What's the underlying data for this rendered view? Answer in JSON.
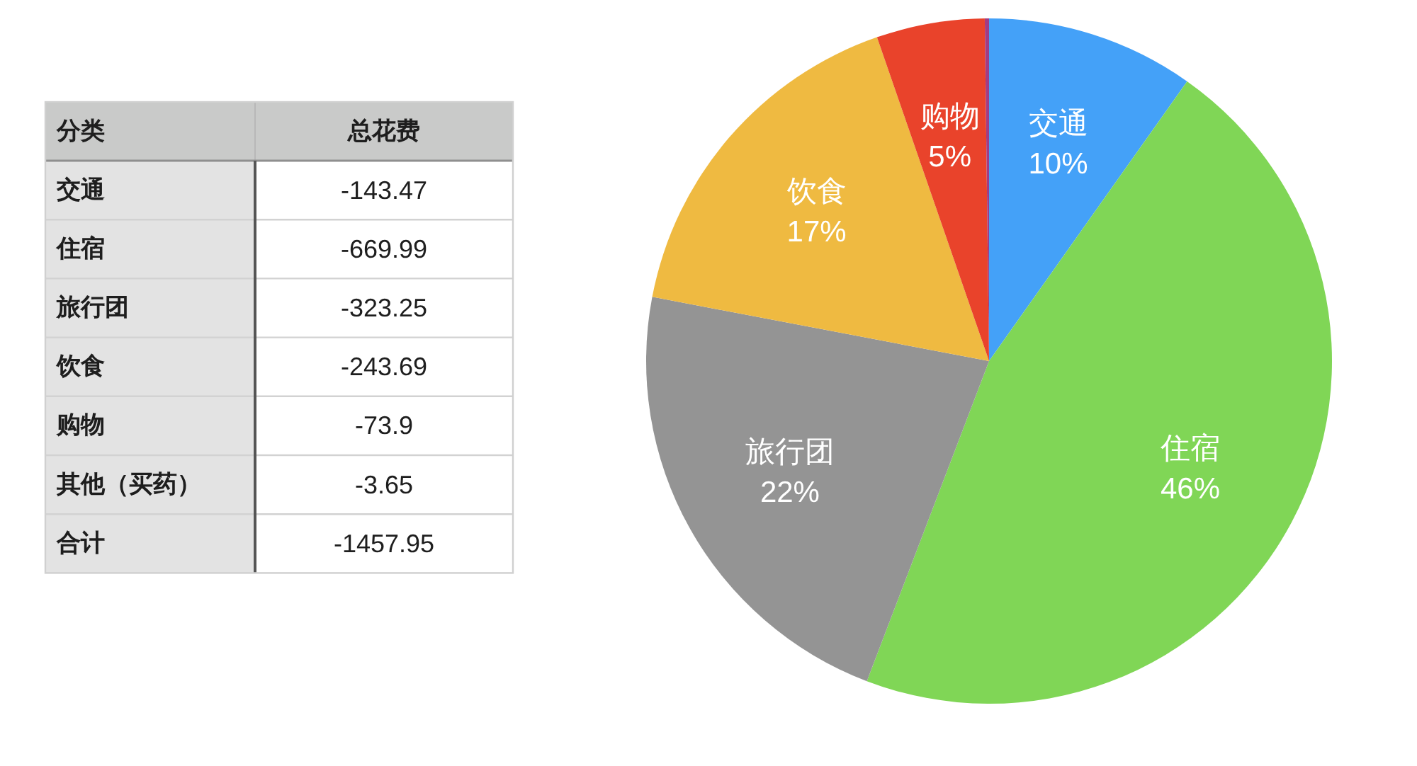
{
  "chart_data": [
    {
      "type": "other",
      "ylabel": "分类",
      "xlabel": "总花费",
      "categories": [
        "交通",
        "住宿",
        "旅行团",
        "饮食",
        "购物",
        "其他（买药）",
        "合计"
      ],
      "values": [
        -143.47,
        -669.99,
        -323.25,
        -243.69,
        -73.9,
        -3.65,
        -1457.95
      ],
      "data_labels": true
    },
    {
      "type": "pie",
      "categories": [
        "交通",
        "住宿",
        "旅行团",
        "饮食",
        "购物",
        null
      ],
      "values": [
        9.8,
        46,
        22.2,
        16.7,
        5.1,
        0.2
      ],
      "value_labels": [
        "10%",
        "46%",
        "22%",
        "17%",
        "5%",
        null
      ],
      "colors": [
        "#44a1f8",
        "#80d656",
        "#949494",
        "#efba41",
        "#e9432b",
        "#a23c83"
      ]
    }
  ]
}
